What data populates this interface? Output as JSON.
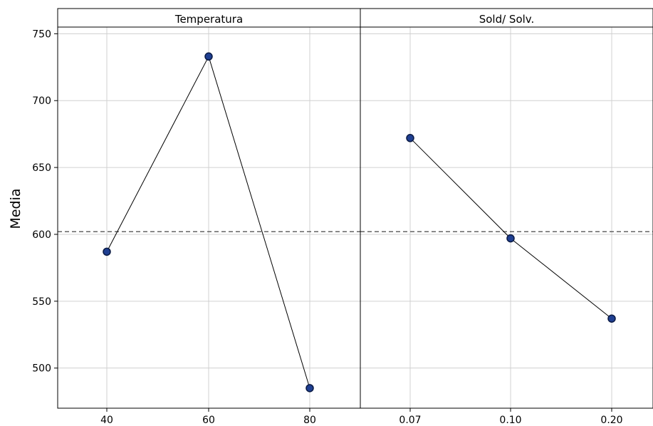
{
  "chart_data": {
    "type": "line",
    "ylabel": "Media",
    "ylim": [
      470,
      755
    ],
    "yticks": [
      500,
      550,
      600,
      650,
      700,
      750
    ],
    "mean_line": 602,
    "grid": true,
    "colors": {
      "marker_fill": "#1f3f91",
      "marker_stroke": "#0a1a44",
      "line": "#000000",
      "mean_line": "#555555",
      "grid": "#d0d0d0"
    },
    "panels": [
      {
        "title": "Temperatura",
        "categories": [
          "40",
          "60",
          "80"
        ],
        "values": [
          587,
          733,
          485
        ]
      },
      {
        "title": "Sold/ Solv.",
        "categories": [
          "0.07",
          "0.10",
          "0.20"
        ],
        "values": [
          672,
          597,
          537
        ]
      }
    ]
  }
}
